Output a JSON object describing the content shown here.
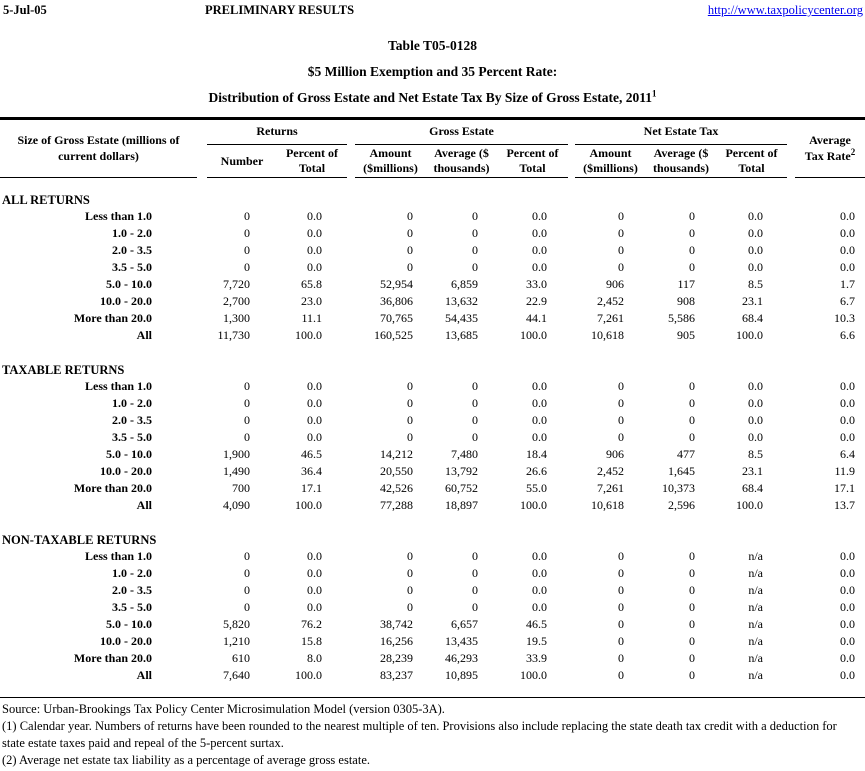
{
  "page_header": {
    "date": "5-Jul-05",
    "status": "PRELIMINARY RESULTS",
    "url": "http://www.taxpolicycenter.org"
  },
  "title": {
    "line1": "Table T05-0128",
    "line2": "$5 Million Exemption and 35 Percent Rate:",
    "line3": "Distribution of Gross Estate and Net Estate Tax By Size of Gross Estate, 2011",
    "line3_sup": "1"
  },
  "table": {
    "stub_header_line1": "Size of Gross Estate (millions of",
    "stub_header_line2": "current dollars)",
    "group_headers": {
      "returns": "Returns",
      "gross_estate": "Gross Estate",
      "net_estate_tax": "Net Estate Tax"
    },
    "sub_headers": {
      "number": "Number",
      "percent_of_total_l1": "Percent of",
      "percent_of_total_l2": "Total",
      "amount_l1": "Amount",
      "amount_l2": "($millions)",
      "average_l1": "Average ($",
      "average_l2": "thousands)"
    },
    "avg_tax_rate": {
      "l1": "Average",
      "l2": "Tax Rate",
      "sup": "2"
    },
    "sections": [
      {
        "name": "ALL RETURNS",
        "rows": [
          {
            "label": "Less than 1.0",
            "values": [
              "0",
              "0.0",
              "0",
              "0",
              "0.0",
              "0",
              "0",
              "0.0",
              "0.0"
            ]
          },
          {
            "label": "1.0 - 2.0",
            "values": [
              "0",
              "0.0",
              "0",
              "0",
              "0.0",
              "0",
              "0",
              "0.0",
              "0.0"
            ]
          },
          {
            "label": "2.0 - 3.5",
            "values": [
              "0",
              "0.0",
              "0",
              "0",
              "0.0",
              "0",
              "0",
              "0.0",
              "0.0"
            ]
          },
          {
            "label": "3.5 - 5.0",
            "values": [
              "0",
              "0.0",
              "0",
              "0",
              "0.0",
              "0",
              "0",
              "0.0",
              "0.0"
            ]
          },
          {
            "label": "5.0 - 10.0",
            "values": [
              "7,720",
              "65.8",
              "52,954",
              "6,859",
              "33.0",
              "906",
              "117",
              "8.5",
              "1.7"
            ]
          },
          {
            "label": "10.0 - 20.0",
            "values": [
              "2,700",
              "23.0",
              "36,806",
              "13,632",
              "22.9",
              "2,452",
              "908",
              "23.1",
              "6.7"
            ]
          },
          {
            "label": "More than 20.0",
            "values": [
              "1,300",
              "11.1",
              "70,765",
              "54,435",
              "44.1",
              "7,261",
              "5,586",
              "68.4",
              "10.3"
            ]
          },
          {
            "label": "All",
            "values": [
              "11,730",
              "100.0",
              "160,525",
              "13,685",
              "100.0",
              "10,618",
              "905",
              "100.0",
              "6.6"
            ]
          }
        ]
      },
      {
        "name": "TAXABLE RETURNS",
        "rows": [
          {
            "label": "Less than 1.0",
            "values": [
              "0",
              "0.0",
              "0",
              "0",
              "0.0",
              "0",
              "0",
              "0.0",
              "0.0"
            ]
          },
          {
            "label": "1.0 - 2.0",
            "values": [
              "0",
              "0.0",
              "0",
              "0",
              "0.0",
              "0",
              "0",
              "0.0",
              "0.0"
            ]
          },
          {
            "label": "2.0 - 3.5",
            "values": [
              "0",
              "0.0",
              "0",
              "0",
              "0.0",
              "0",
              "0",
              "0.0",
              "0.0"
            ]
          },
          {
            "label": "3.5 - 5.0",
            "values": [
              "0",
              "0.0",
              "0",
              "0",
              "0.0",
              "0",
              "0",
              "0.0",
              "0.0"
            ]
          },
          {
            "label": "5.0 - 10.0",
            "values": [
              "1,900",
              "46.5",
              "14,212",
              "7,480",
              "18.4",
              "906",
              "477",
              "8.5",
              "6.4"
            ]
          },
          {
            "label": "10.0 - 20.0",
            "values": [
              "1,490",
              "36.4",
              "20,550",
              "13,792",
              "26.6",
              "2,452",
              "1,645",
              "23.1",
              "11.9"
            ]
          },
          {
            "label": "More than 20.0",
            "values": [
              "700",
              "17.1",
              "42,526",
              "60,752",
              "55.0",
              "7,261",
              "10,373",
              "68.4",
              "17.1"
            ]
          },
          {
            "label": "All",
            "values": [
              "4,090",
              "100.0",
              "77,288",
              "18,897",
              "100.0",
              "10,618",
              "2,596",
              "100.0",
              "13.7"
            ]
          }
        ]
      },
      {
        "name": "NON-TAXABLE RETURNS",
        "rows": [
          {
            "label": "Less than 1.0",
            "values": [
              "0",
              "0.0",
              "0",
              "0",
              "0.0",
              "0",
              "0",
              "n/a",
              "0.0"
            ]
          },
          {
            "label": "1.0 - 2.0",
            "values": [
              "0",
              "0.0",
              "0",
              "0",
              "0.0",
              "0",
              "0",
              "n/a",
              "0.0"
            ]
          },
          {
            "label": "2.0 - 3.5",
            "values": [
              "0",
              "0.0",
              "0",
              "0",
              "0.0",
              "0",
              "0",
              "n/a",
              "0.0"
            ]
          },
          {
            "label": "3.5 - 5.0",
            "values": [
              "0",
              "0.0",
              "0",
              "0",
              "0.0",
              "0",
              "0",
              "n/a",
              "0.0"
            ]
          },
          {
            "label": "5.0 - 10.0",
            "values": [
              "5,820",
              "76.2",
              "38,742",
              "6,657",
              "46.5",
              "0",
              "0",
              "n/a",
              "0.0"
            ]
          },
          {
            "label": "10.0 - 20.0",
            "values": [
              "1,210",
              "15.8",
              "16,256",
              "13,435",
              "19.5",
              "0",
              "0",
              "n/a",
              "0.0"
            ]
          },
          {
            "label": "More than 20.0",
            "values": [
              "610",
              "8.0",
              "28,239",
              "46,293",
              "33.9",
              "0",
              "0",
              "n/a",
              "0.0"
            ]
          },
          {
            "label": "All",
            "values": [
              "7,640",
              "100.0",
              "83,237",
              "10,895",
              "100.0",
              "0",
              "0",
              "n/a",
              "0.0"
            ]
          }
        ]
      }
    ]
  },
  "footnotes": {
    "source": "Source: Urban-Brookings Tax Policy Center Microsimulation Model (version 0305-3A).",
    "note1": "(1) Calendar year. Numbers of returns have been rounded to the nearest multiple of ten. Provisions also include replacing the state death tax credit with a deduction for state estate taxes paid and repeal of the 5-percent surtax.",
    "note2": "(2) Average net estate tax liability as a percentage of average gross estate."
  }
}
